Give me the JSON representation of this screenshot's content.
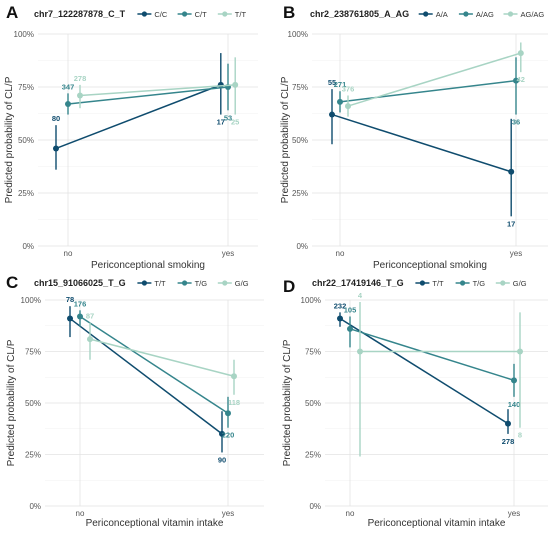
{
  "figure": {
    "ylabel": "Predicted probability of CL/P"
  },
  "chart_data": [
    {
      "panel": "A",
      "type": "line",
      "legend_title": "chr7_122287878_C_T",
      "legend_position": "top",
      "xlabel": "Periconceptional smoking",
      "ylabel": "Predicted probability of CL/P",
      "categories": [
        "no",
        "yes"
      ],
      "y_ticks": [
        "0%",
        "25%",
        "50%",
        "75%",
        "100%"
      ],
      "ylim": [
        0,
        100
      ],
      "grid": true,
      "series": [
        {
          "name": "C/C",
          "color": "#0f4c6e",
          "values": [
            46,
            76
          ],
          "lower": [
            36,
            62
          ],
          "upper": [
            57,
            91
          ],
          "n": [
            "80",
            "17"
          ]
        },
        {
          "name": "C/T",
          "color": "#35858c",
          "values": [
            67,
            75
          ],
          "lower": [
            62,
            64
          ],
          "upper": [
            72,
            86
          ],
          "n": [
            "347",
            "53"
          ]
        },
        {
          "name": "T/T",
          "color": "#a8d4c4",
          "values": [
            71,
            76
          ],
          "lower": [
            65,
            62
          ],
          "upper": [
            76,
            89
          ],
          "n": [
            "278",
            "25"
          ]
        }
      ]
    },
    {
      "panel": "B",
      "type": "line",
      "legend_title": "chr2_238761805_A_AG",
      "legend_position": "top",
      "xlabel": "Periconceptional smoking",
      "ylabel": "Predicted probability of CL/P",
      "categories": [
        "no",
        "yes"
      ],
      "y_ticks": [
        "0%",
        "25%",
        "50%",
        "75%",
        "100%"
      ],
      "ylim": [
        0,
        100
      ],
      "grid": true,
      "series": [
        {
          "name": "A/A",
          "color": "#0f4c6e",
          "values": [
            62,
            35
          ],
          "lower": [
            48,
            14
          ],
          "upper": [
            74,
            60
          ],
          "n": [
            "55",
            "17"
          ]
        },
        {
          "name": "A/AG",
          "color": "#35858c",
          "values": [
            68,
            78
          ],
          "lower": [
            63,
            62
          ],
          "upper": [
            73,
            89
          ],
          "n": [
            "271",
            "36"
          ]
        },
        {
          "name": "AG/AG",
          "color": "#a8d4c4",
          "values": [
            66,
            91
          ],
          "lower": [
            61,
            82
          ],
          "upper": [
            71,
            96
          ],
          "n": [
            "376",
            "42"
          ]
        }
      ]
    },
    {
      "panel": "C",
      "type": "line",
      "legend_title": "chr15_91066025_T_G",
      "legend_position": "top",
      "xlabel": "Periconceptional vitamin intake",
      "ylabel": "Predicted probability of CL/P",
      "categories": [
        "no",
        "yes"
      ],
      "y_ticks": [
        "0%",
        "25%",
        "50%",
        "75%",
        "100%"
      ],
      "ylim": [
        0,
        100
      ],
      "grid": true,
      "series": [
        {
          "name": "T/T",
          "color": "#0f4c6e",
          "values": [
            91,
            35
          ],
          "lower": [
            82,
            26
          ],
          "upper": [
            97,
            46
          ],
          "n": [
            "78",
            "90"
          ]
        },
        {
          "name": "T/G",
          "color": "#35858c",
          "values": [
            92,
            45
          ],
          "lower": [
            87,
            38
          ],
          "upper": [
            95,
            53
          ],
          "n": [
            "176",
            "220"
          ]
        },
        {
          "name": "G/G",
          "color": "#a8d4c4",
          "values": [
            81,
            63
          ],
          "lower": [
            71,
            54
          ],
          "upper": [
            89,
            71
          ],
          "n": [
            "87",
            "118"
          ]
        }
      ]
    },
    {
      "panel": "D",
      "type": "line",
      "legend_title": "chr22_17419146_T_G",
      "legend_position": "top",
      "xlabel": "Periconceptional vitamin intake",
      "ylabel": "Predicted probability of CL/P",
      "categories": [
        "no",
        "yes"
      ],
      "y_ticks": [
        "0%",
        "25%",
        "50%",
        "75%",
        "100%"
      ],
      "ylim": [
        0,
        100
      ],
      "grid": true,
      "series": [
        {
          "name": "T/T",
          "color": "#0f4c6e",
          "values": [
            91,
            40
          ],
          "lower": [
            87,
            35
          ],
          "upper": [
            94,
            47
          ],
          "n": [
            "232",
            "278"
          ]
        },
        {
          "name": "T/G",
          "color": "#35858c",
          "values": [
            86,
            61
          ],
          "lower": [
            77,
            53
          ],
          "upper": [
            92,
            69
          ],
          "n": [
            "105",
            "140"
          ]
        },
        {
          "name": "G/G",
          "color": "#a8d4c4",
          "values": [
            75,
            75
          ],
          "lower": [
            24,
            38
          ],
          "upper": [
            99,
            94
          ],
          "n": [
            "4",
            "8"
          ]
        }
      ]
    }
  ]
}
